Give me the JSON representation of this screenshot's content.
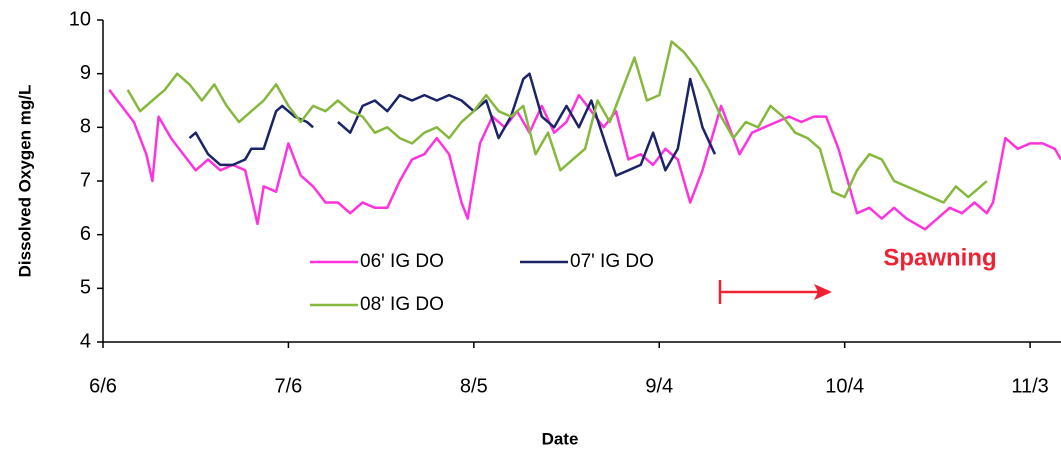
{
  "chart_data": {
    "type": "line",
    "xlabel": "Date",
    "ylabel": "Dissolved Oxygen mg/L",
    "xlim": [
      "6/6",
      "11/8"
    ],
    "xticks": [
      "6/6",
      "7/6",
      "8/5",
      "9/4",
      "10/4",
      "11/3"
    ],
    "ylim": [
      4,
      10
    ],
    "yticks": [
      4,
      5,
      6,
      7,
      8,
      9,
      10
    ],
    "grid": false,
    "annotation": "Spawning",
    "series": [
      {
        "name": "06' IG DO",
        "color": "#ff33dd",
        "x": [
          "6/7",
          "6/9",
          "6/11",
          "6/13",
          "6/14",
          "6/15",
          "6/17",
          "6/19",
          "6/21",
          "6/23",
          "6/25",
          "6/27",
          "6/29",
          "7/1",
          "7/2",
          "7/4",
          "7/6",
          "7/8",
          "7/10",
          "7/12",
          "7/14",
          "7/16",
          "7/18",
          "7/20",
          "7/22",
          "7/24",
          "7/26",
          "7/28",
          "7/30",
          "8/1",
          "8/3",
          "8/4",
          "8/6",
          "8/8",
          "8/10",
          "8/12",
          "8/14",
          "8/16",
          "8/18",
          "8/20",
          "8/22",
          "8/24",
          "8/26",
          "8/28",
          "8/30",
          "9/1",
          "9/3",
          "9/5",
          "9/7",
          "9/9",
          "9/11",
          "9/14",
          "9/17",
          "9/19",
          "9/21",
          "9/23",
          "9/25",
          "9/27",
          "9/29",
          "10/1",
          "10/3",
          "10/6",
          "10/8",
          "10/10",
          "10/12",
          "10/14",
          "10/17",
          "10/19",
          "10/21",
          "10/23",
          "10/25",
          "10/27",
          "10/28",
          "10/30",
          "11/1",
          "11/3",
          "11/5",
          "11/7",
          "11/8"
        ],
        "values": [
          8.7,
          8.4,
          8.1,
          7.5,
          7.0,
          8.2,
          7.8,
          7.5,
          7.2,
          7.4,
          7.2,
          7.3,
          7.2,
          6.2,
          6.9,
          6.8,
          7.7,
          7.1,
          6.9,
          6.6,
          6.6,
          6.4,
          6.6,
          6.5,
          6.5,
          7.0,
          7.4,
          7.5,
          7.8,
          7.5,
          6.6,
          6.3,
          7.7,
          8.2,
          8.0,
          8.3,
          7.9,
          8.4,
          7.9,
          8.1,
          8.6,
          8.3,
          8.0,
          8.3,
          7.4,
          7.5,
          7.3,
          7.6,
          7.4,
          6.6,
          7.2,
          8.4,
          7.5,
          7.9,
          8.0,
          8.1,
          8.2,
          8.1,
          8.2,
          8.2,
          7.6,
          6.4,
          6.5,
          6.3,
          6.5,
          6.3,
          6.1,
          6.3,
          6.5,
          6.4,
          6.6,
          6.4,
          6.6,
          7.8,
          7.6,
          7.7,
          7.7,
          7.6,
          7.4
        ]
      },
      {
        "name": "07' IG DO",
        "color": "#1a2466",
        "x": [
          "6/20",
          "6/21",
          "6/23",
          "6/25",
          "6/27",
          "6/29",
          "6/30",
          "7/2",
          "7/4",
          "7/5",
          "7/7",
          "7/9",
          "7/10",
          "7/12",
          "7/14",
          "7/16",
          "7/18",
          "7/20",
          "7/22",
          "7/24",
          "7/26",
          "7/28",
          "7/30",
          "8/1",
          "8/3",
          "8/5",
          "8/7",
          "8/9",
          "8/11",
          "8/13",
          "8/14",
          "8/16",
          "8/18",
          "8/20",
          "8/22",
          "8/24",
          "8/26",
          "8/28",
          "8/30",
          "9/1",
          "9/3",
          "9/5",
          "9/7",
          "9/9",
          "9/11",
          "9/13"
        ],
        "values": [
          7.8,
          7.9,
          7.5,
          7.3,
          7.3,
          7.4,
          7.6,
          7.6,
          8.3,
          8.4,
          8.2,
          8.1,
          8.0,
          null,
          8.1,
          7.9,
          8.4,
          8.5,
          8.3,
          8.6,
          8.5,
          8.6,
          8.5,
          8.6,
          8.5,
          8.3,
          8.5,
          7.8,
          8.2,
          8.9,
          9.0,
          8.2,
          8.0,
          8.4,
          8.0,
          8.5,
          7.8,
          7.1,
          7.2,
          7.3,
          7.9,
          7.2,
          7.6,
          8.9,
          8.0,
          7.5
        ]
      },
      {
        "name": "08' IG DO",
        "color": "#86b83e",
        "x": [
          "6/10",
          "6/12",
          "6/14",
          "6/16",
          "6/18",
          "6/20",
          "6/22",
          "6/24",
          "6/26",
          "6/28",
          "6/30",
          "7/2",
          "7/4",
          "7/6",
          "7/8",
          "7/10",
          "7/12",
          "7/14",
          "7/16",
          "7/18",
          "7/20",
          "7/22",
          "7/24",
          "7/26",
          "7/28",
          "7/30",
          "8/1",
          "8/3",
          "8/5",
          "8/7",
          "8/9",
          "8/11",
          "8/13",
          "8/15",
          "8/17",
          "8/19",
          "8/21",
          "8/23",
          "8/25",
          "8/27",
          "8/29",
          "8/31",
          "9/2",
          "9/4",
          "9/6",
          "9/8",
          "9/10",
          "9/12",
          "9/14",
          "9/16",
          "9/18",
          "9/20",
          "9/22",
          "9/24",
          "9/26",
          "9/28",
          "9/30",
          "10/2",
          "10/4",
          "10/6",
          "10/8",
          "10/10",
          "10/12",
          "10/14",
          "10/16",
          "10/18",
          "10/20",
          "10/22",
          "10/24",
          "10/26",
          "10/27"
        ],
        "values": [
          8.7,
          8.3,
          8.5,
          8.7,
          9.0,
          8.8,
          8.5,
          8.8,
          8.4,
          8.1,
          8.3,
          8.5,
          8.8,
          8.4,
          8.1,
          8.4,
          8.3,
          8.5,
          8.3,
          8.2,
          7.9,
          8.0,
          7.8,
          7.7,
          7.9,
          8.0,
          7.8,
          8.1,
          8.3,
          8.6,
          8.3,
          8.2,
          8.4,
          7.5,
          7.9,
          7.2,
          7.4,
          7.6,
          8.5,
          8.1,
          8.7,
          9.3,
          8.5,
          8.6,
          9.6,
          9.4,
          9.1,
          8.7,
          8.2,
          7.8,
          8.1,
          8.0,
          8.4,
          8.2,
          7.9,
          7.8,
          7.6,
          6.8,
          6.7,
          7.2,
          7.5,
          7.4,
          7.0,
          6.9,
          6.8,
          6.7,
          6.6,
          6.9,
          6.7,
          6.9,
          7.0
        ]
      }
    ]
  }
}
